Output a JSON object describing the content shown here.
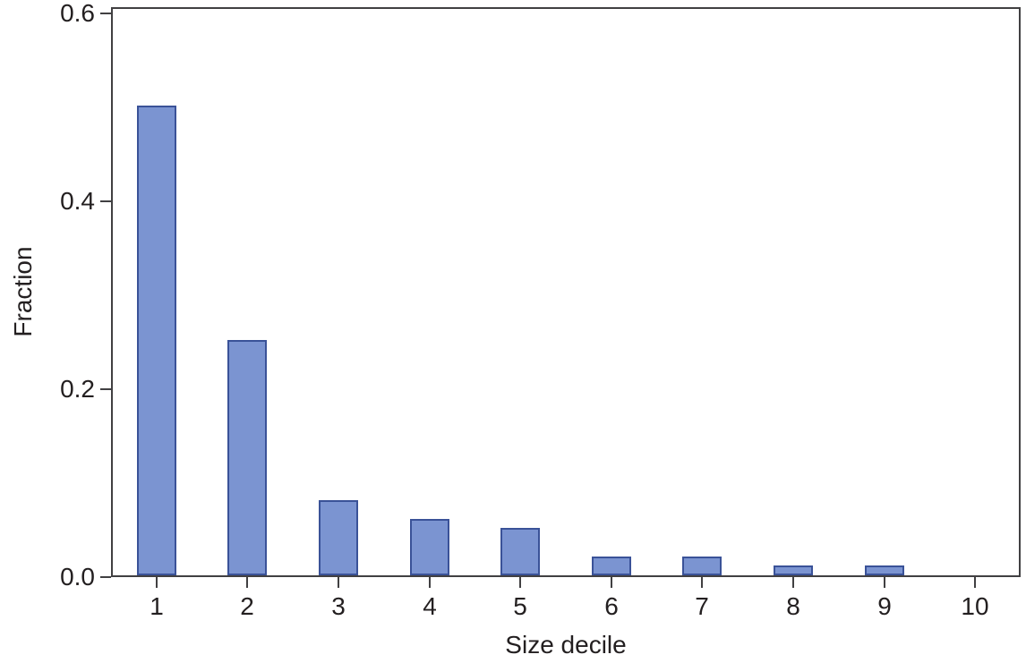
{
  "chart_data": {
    "type": "bar",
    "title": "",
    "xlabel": "Size decile",
    "ylabel": "Fraction",
    "categories": [
      "1",
      "2",
      "3",
      "4",
      "5",
      "6",
      "7",
      "8",
      "9",
      "10"
    ],
    "values": [
      0.5,
      0.25,
      0.08,
      0.06,
      0.05,
      0.02,
      0.02,
      0.01,
      0.01,
      0
    ],
    "series": [
      {
        "name": "Fraction",
        "values": [
          0.5,
          0.25,
          0.08,
          0.06,
          0.05,
          0.02,
          0.02,
          0.01,
          0.01,
          0
        ]
      }
    ],
    "ylim": [
      0,
      0.607
    ],
    "yticks": [
      {
        "value": 0.0,
        "label": "0.0"
      },
      {
        "value": 0.2,
        "label": "0.2"
      },
      {
        "value": 0.4,
        "label": "0.4"
      },
      {
        "value": 0.6,
        "label": "0.6"
      }
    ],
    "grid": false,
    "legend": null,
    "colors": {
      "bar_fill": "#7b94d1",
      "bar_border": "#3a5298",
      "axis": "#414042",
      "text": "#231f20",
      "background": "#ffffff"
    }
  }
}
